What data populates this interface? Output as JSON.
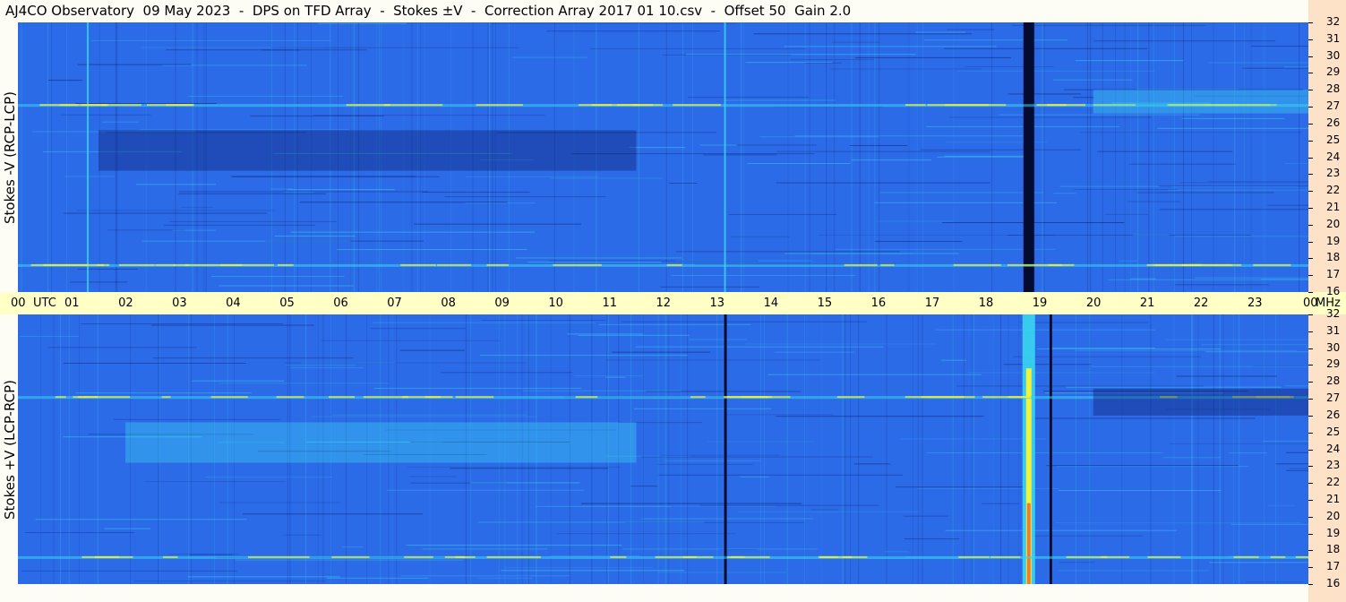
{
  "title": "AJ4CO Observatory  09 May 2023  -  DPS on TFD Array  -  Stokes ±V  -  Correction Array 2017 01 10.csv  -  Offset 50  Gain 2.0",
  "panels": {
    "top_label": "Stokes -V (RCP-LCP)",
    "bottom_label": "Stokes +V (LCP-RCP)"
  },
  "colors": {
    "background": "#2c6be8",
    "dark": "#0a1a6a",
    "bright": "#39d6f0",
    "hot": "#f2f23a",
    "time_axis_bg": "#ffffc6",
    "freq_axis_bg": "#fde2c8"
  },
  "chart_data": [
    {
      "type": "heatmap",
      "title": "Stokes -V (RCP-LCP)",
      "x": {
        "label": "UTC",
        "ticks": [
          "00",
          "01",
          "02",
          "03",
          "04",
          "05",
          "06",
          "07",
          "08",
          "09",
          "10",
          "11",
          "12",
          "13",
          "14",
          "15",
          "16",
          "17",
          "18",
          "19",
          "20",
          "21",
          "22",
          "23",
          "00"
        ],
        "range": [
          0,
          24
        ]
      },
      "y": {
        "label": "MHz",
        "ticks": [
          "32",
          "31",
          "30",
          "29",
          "28",
          "27",
          "26",
          "25",
          "24",
          "23",
          "22",
          "21",
          "20",
          "19",
          "18",
          "17",
          "16"
        ],
        "range": [
          16,
          32
        ]
      },
      "features": [
        {
          "kind": "dark-vertical-band",
          "utc": 18.8,
          "intensity": "very dark"
        },
        {
          "kind": "dark-region",
          "utc_start": 1.5,
          "utc_end": 11.5,
          "mhz_start": 23.2,
          "mhz_end": 25.6
        },
        {
          "kind": "bright-vertical-line",
          "utc": 1.3
        },
        {
          "kind": "bright-vertical-line",
          "utc": 13.15
        },
        {
          "kind": "interference-row",
          "mhz": 27.1
        },
        {
          "kind": "interference-row",
          "mhz": 17.6
        },
        {
          "kind": "bright-region",
          "utc_start": 20.0,
          "utc_end": 24.0,
          "mhz_start": 26.6,
          "mhz_end": 28.0
        }
      ]
    },
    {
      "type": "heatmap",
      "title": "Stokes +V (LCP-RCP)",
      "x": {
        "label": "UTC",
        "ticks": [
          "00",
          "01",
          "02",
          "03",
          "04",
          "05",
          "06",
          "07",
          "08",
          "09",
          "10",
          "11",
          "12",
          "13",
          "14",
          "15",
          "16",
          "17",
          "18",
          "19",
          "20",
          "21",
          "22",
          "23",
          "00"
        ],
        "range": [
          0,
          24
        ]
      },
      "y": {
        "label": "MHz",
        "ticks": [
          "32",
          "31",
          "30",
          "29",
          "28",
          "27",
          "26",
          "25",
          "24",
          "23",
          "22",
          "21",
          "20",
          "19",
          "18",
          "17",
          "16"
        ],
        "range": [
          16,
          32
        ]
      },
      "features": [
        {
          "kind": "bright-vertical-band",
          "utc": 18.8,
          "intensity": "bright (yellow/red)"
        },
        {
          "kind": "bright-region",
          "utc_start": 2.0,
          "utc_end": 11.5,
          "mhz_start": 23.2,
          "mhz_end": 25.6
        },
        {
          "kind": "dark-vertical-line",
          "utc": 13.15
        },
        {
          "kind": "dark-vertical-line",
          "utc": 19.2
        },
        {
          "kind": "interference-row",
          "mhz": 27.1
        },
        {
          "kind": "interference-row",
          "mhz": 17.6
        },
        {
          "kind": "dark-region",
          "utc_start": 20.0,
          "utc_end": 24.0,
          "mhz_start": 26.0,
          "mhz_end": 27.6
        }
      ]
    }
  ]
}
